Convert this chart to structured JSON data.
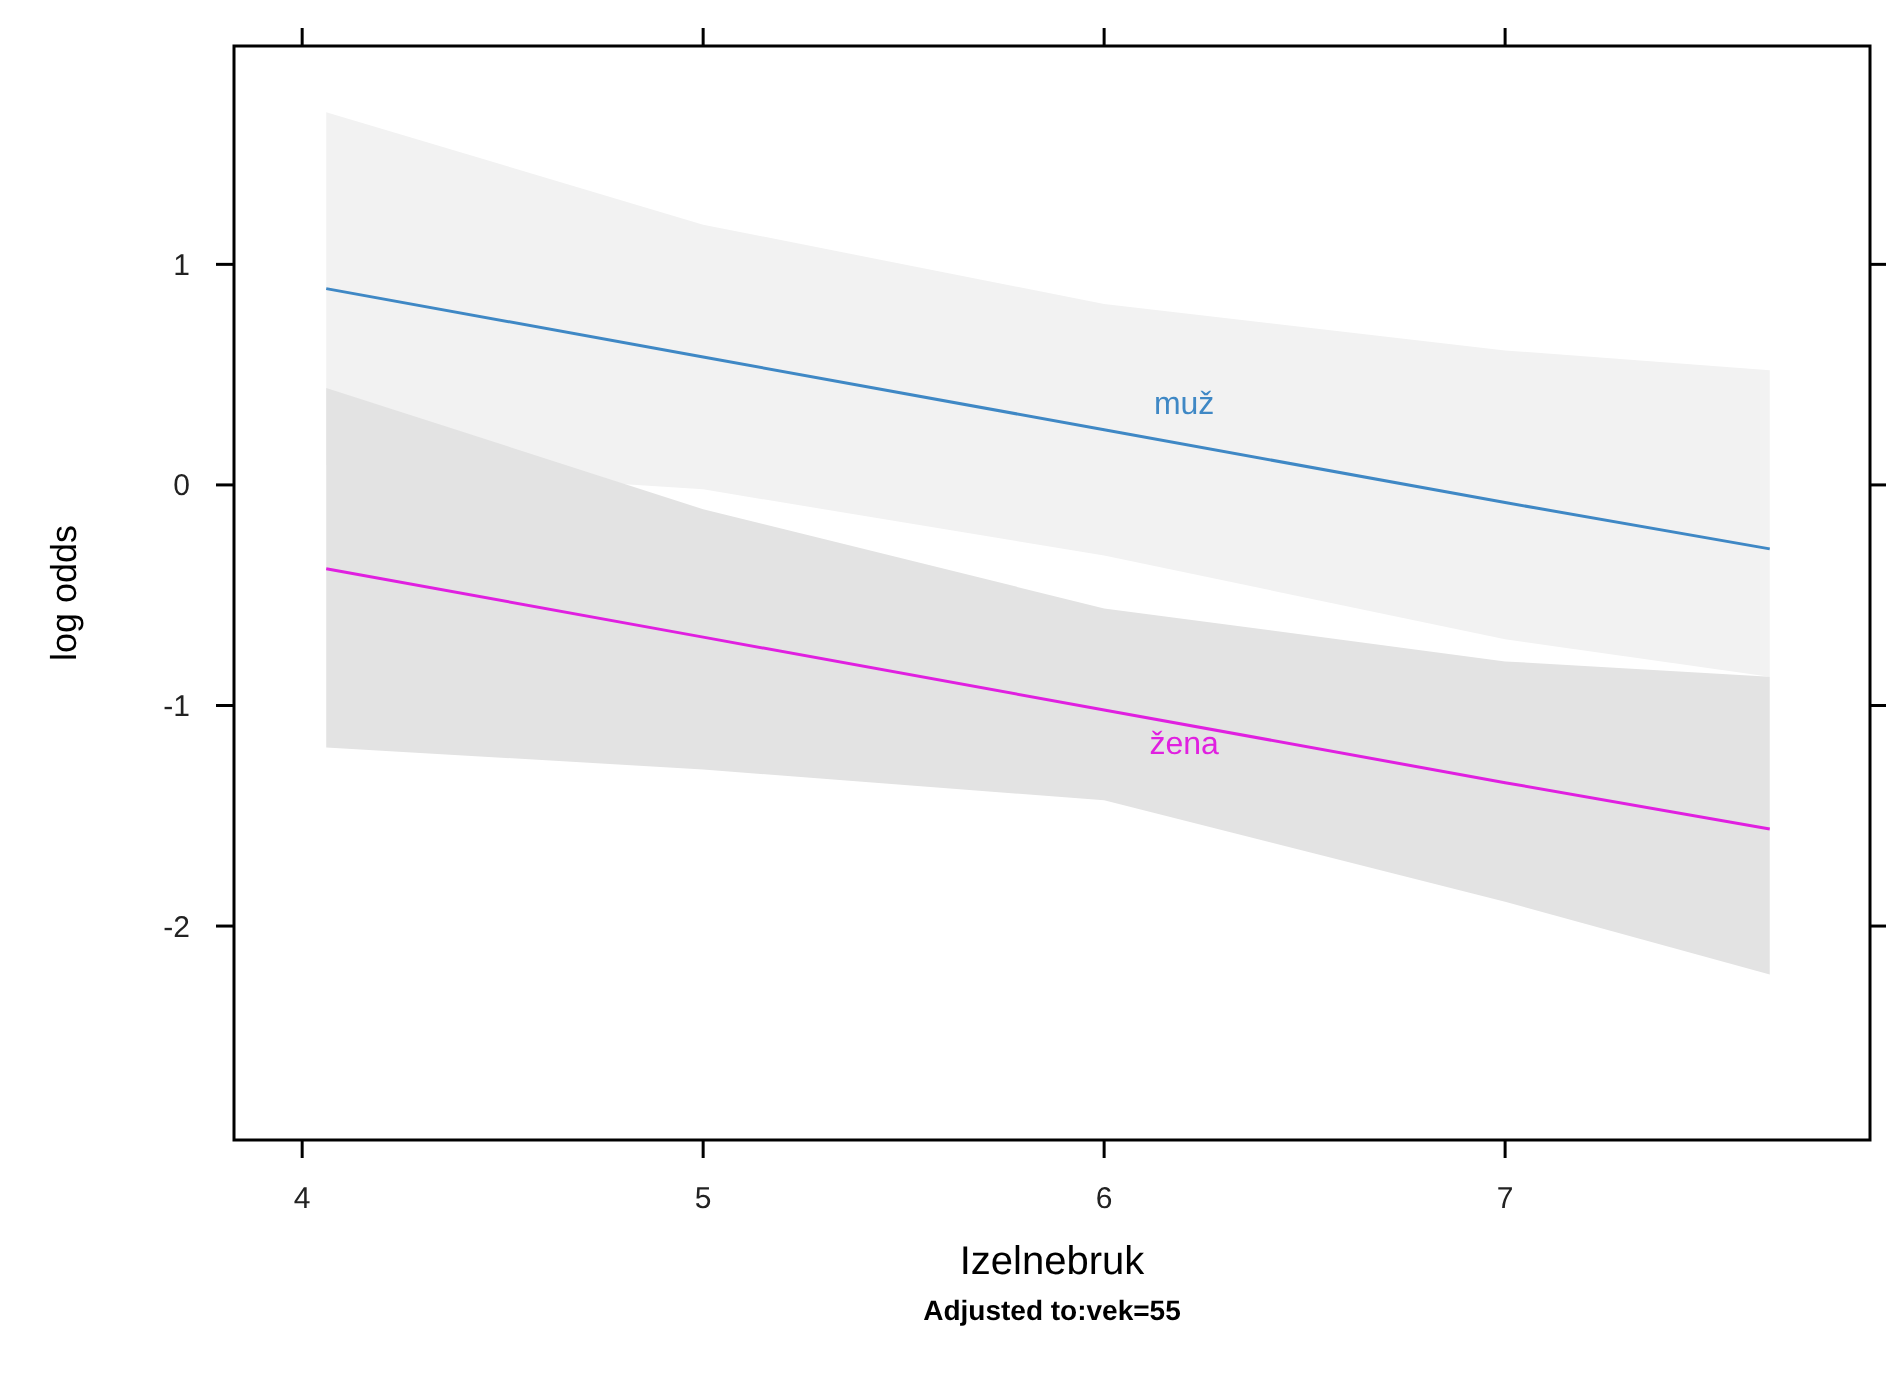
{
  "chart_data": {
    "type": "line",
    "xlabel": "Izelnebruk",
    "ylabel": "log odds",
    "annotations": [
      "Adjusted to:vek=55"
    ],
    "xlim": [
      3.83,
      7.91
    ],
    "ylim": [
      -2.97,
      1.99
    ],
    "xticks": [
      4,
      5,
      6,
      7
    ],
    "yticks": [
      -2,
      -1,
      0,
      1
    ],
    "grid": false,
    "marker": "none",
    "line_style": "solid",
    "series": [
      {
        "name": "muž",
        "color": "#3f88c5",
        "x": [
          4.06,
          5,
          6,
          7,
          7.66
        ],
        "values": [
          0.89,
          0.58,
          0.25,
          -0.08,
          -0.29
        ],
        "lower": [
          0.09,
          -0.02,
          -0.32,
          -0.7,
          -0.87
        ],
        "upper": [
          1.69,
          1.18,
          0.82,
          0.61,
          0.52
        ]
      },
      {
        "name": "žena",
        "color": "#e020e0",
        "x": [
          4.06,
          5,
          6,
          7,
          7.66
        ],
        "values": [
          -0.38,
          -0.69,
          -1.02,
          -1.35,
          -1.56
        ],
        "lower": [
          -1.19,
          -1.29,
          -1.43,
          -1.89,
          -2.22
        ],
        "upper": [
          0.44,
          -0.11,
          -0.56,
          -0.8,
          -0.87
        ]
      }
    ]
  }
}
